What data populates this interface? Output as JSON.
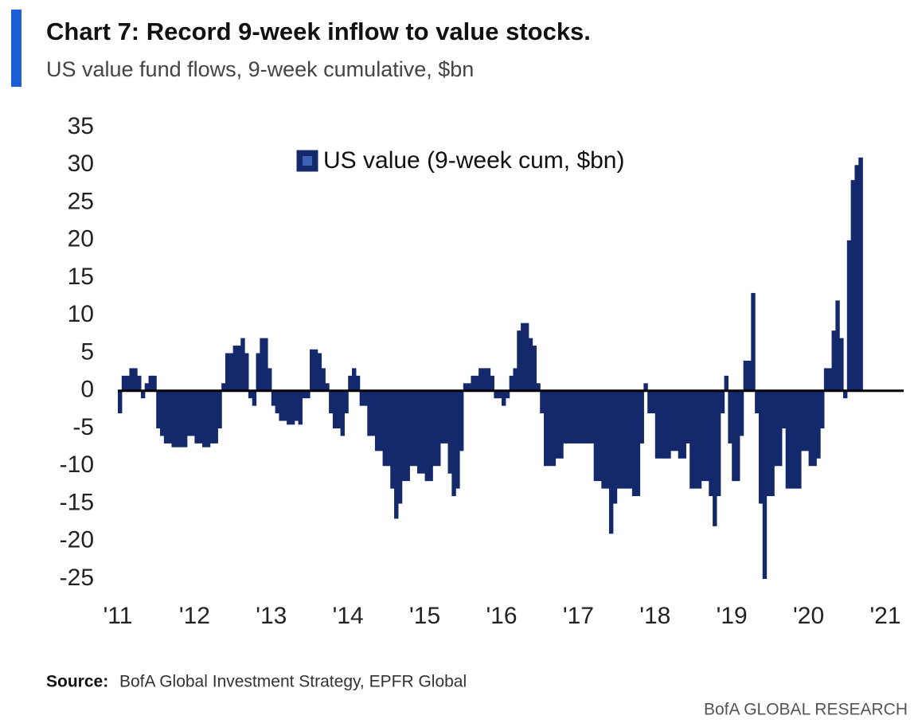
{
  "chart_data": {
    "type": "bar",
    "title": "Chart 7: Record 9-week inflow to value stocks.",
    "subtitle": "US value fund flows, 9-week cumulative, $bn",
    "x": [
      2011.0,
      2011.05,
      2011.1,
      2011.15,
      2011.2,
      2011.25,
      2011.3,
      2011.35,
      2011.4,
      2011.45,
      2011.5,
      2011.55,
      2011.6,
      2011.7,
      2011.8,
      2011.9,
      2012.0,
      2012.1,
      2012.2,
      2012.3,
      2012.35,
      2012.4,
      2012.5,
      2012.6,
      2012.65,
      2012.7,
      2012.75,
      2012.8,
      2012.85,
      2012.9,
      2012.95,
      2013.0,
      2013.05,
      2013.1,
      2013.2,
      2013.3,
      2013.35,
      2013.4,
      2013.5,
      2013.6,
      2013.65,
      2013.7,
      2013.75,
      2013.8,
      2013.9,
      2013.95,
      2014.0,
      2014.05,
      2014.1,
      2014.15,
      2014.25,
      2014.35,
      2014.45,
      2014.55,
      2014.6,
      2014.65,
      2014.7,
      2014.8,
      2014.9,
      2015.0,
      2015.1,
      2015.2,
      2015.3,
      2015.35,
      2015.4,
      2015.45,
      2015.5,
      2015.6,
      2015.7,
      2015.8,
      2015.85,
      2015.9,
      2016.0,
      2016.05,
      2016.1,
      2016.15,
      2016.2,
      2016.25,
      2016.3,
      2016.35,
      2016.4,
      2016.45,
      2016.5,
      2016.55,
      2016.6,
      2016.7,
      2016.8,
      2016.9,
      2017.0,
      2017.1,
      2017.2,
      2017.3,
      2017.4,
      2017.45,
      2017.5,
      2017.6,
      2017.7,
      2017.8,
      2017.85,
      2017.9,
      2018.0,
      2018.1,
      2018.2,
      2018.3,
      2018.4,
      2018.45,
      2018.5,
      2018.6,
      2018.7,
      2018.75,
      2018.8,
      2018.85,
      2018.9,
      2018.95,
      2019.0,
      2019.1,
      2019.15,
      2019.2,
      2019.25,
      2019.3,
      2019.35,
      2019.4,
      2019.45,
      2019.55,
      2019.65,
      2019.7,
      2019.8,
      2019.9,
      2020.0,
      2020.1,
      2020.15,
      2020.2,
      2020.3,
      2020.35,
      2020.4,
      2020.45,
      2020.5,
      2020.55,
      2020.6,
      2020.65
    ],
    "series": [
      {
        "name": "US value (9-week cum, $bn)",
        "color": "#14296b",
        "values": [
          -3,
          2,
          2,
          3,
          3,
          2,
          -1,
          1,
          2,
          2,
          -5,
          -6,
          -7,
          -7.5,
          -7.5,
          -6,
          -7,
          -7.5,
          -7,
          -5,
          1,
          5,
          6,
          7,
          5,
          -1,
          -2,
          5,
          7,
          7,
          3,
          -2,
          -3,
          -4,
          -4.5,
          -4,
          -4.5,
          -1,
          5.5,
          5,
          3,
          1,
          -3,
          -5,
          -6,
          -3,
          2,
          3,
          2,
          -2,
          -6,
          -8,
          -10,
          -13,
          -17,
          -15,
          -12,
          -10,
          -11,
          -12,
          -10,
          -7,
          -11,
          -14,
          -13,
          -8,
          1,
          2,
          3,
          3,
          2,
          -1,
          -2,
          -1,
          2,
          3,
          8,
          9,
          9,
          7,
          6,
          1,
          -3,
          -10,
          -10,
          -9,
          -7,
          -7,
          -7,
          -7,
          -12,
          -13,
          -19,
          -15,
          -13,
          -13,
          -14,
          -7,
          1,
          -3,
          -9,
          -9,
          -8,
          -9,
          -7,
          -13,
          -13,
          -12,
          -14,
          -18,
          -14,
          -3,
          2,
          -7,
          -12,
          -6,
          4,
          4,
          13,
          -3,
          -15,
          -25,
          -14,
          -10,
          -5,
          -13,
          -13,
          -8,
          -10,
          -9,
          -5,
          3,
          8,
          12,
          7,
          -1,
          20,
          28,
          30,
          31
        ]
      }
    ],
    "xlim": [
      2011,
      2021
    ],
    "xticks": [
      {
        "value": 2011,
        "label": "'11"
      },
      {
        "value": 2012,
        "label": "'12"
      },
      {
        "value": 2013,
        "label": "'13"
      },
      {
        "value": 2014,
        "label": "'14"
      },
      {
        "value": 2015,
        "label": "'15"
      },
      {
        "value": 2016,
        "label": "'16"
      },
      {
        "value": 2017,
        "label": "'17"
      },
      {
        "value": 2018,
        "label": "'18"
      },
      {
        "value": 2019,
        "label": "'19"
      },
      {
        "value": 2020,
        "label": "'20"
      },
      {
        "value": 2021,
        "label": "'21"
      }
    ],
    "ylim": [
      -25,
      35
    ],
    "yticks": [
      35,
      30,
      25,
      20,
      15,
      10,
      5,
      0,
      -5,
      -10,
      -15,
      -20,
      -25
    ],
    "grid": false,
    "source_label": "Source:",
    "source": "BofA Global Investment Strategy, EPFR Global",
    "brand": "BofA GLOBAL RESEARCH"
  }
}
